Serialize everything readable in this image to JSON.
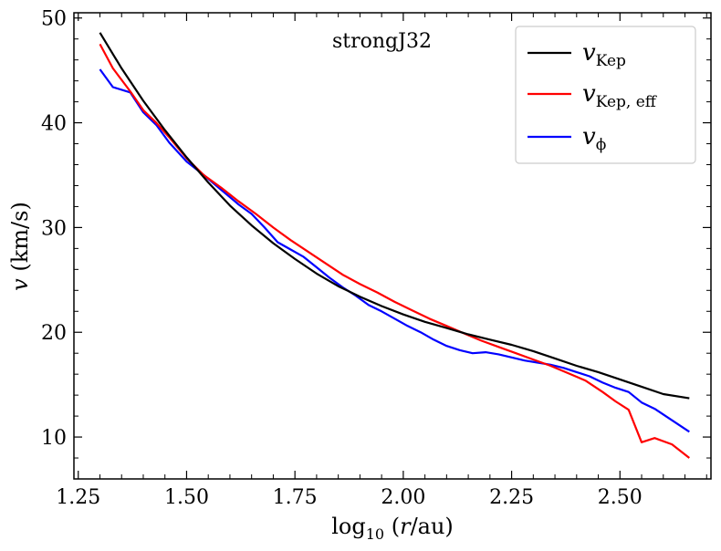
{
  "chart_data": {
    "type": "line",
    "title": "",
    "annotation": "strongJ32",
    "xlabel": {
      "prefix": "log",
      "sub": "10",
      "open": " (",
      "var": "r",
      "rest": "/au)"
    },
    "ylabel": {
      "var": "v",
      "rest": " (km/s)"
    },
    "xlim": [
      1.24,
      2.71
    ],
    "ylim": [
      6.0,
      50.5
    ],
    "xticks": [
      1.25,
      1.5,
      1.75,
      2.0,
      2.25,
      2.5
    ],
    "xtick_labels": [
      "1.25",
      "1.50",
      "1.75",
      "2.00",
      "2.25",
      "2.50"
    ],
    "yticks": [
      10,
      20,
      30,
      40,
      50
    ],
    "ytick_labels": [
      "10",
      "20",
      "30",
      "40",
      "50"
    ],
    "legend_position": "top-right",
    "series": [
      {
        "name": "v_Kep",
        "label_main": "v",
        "label_sub": "Kep",
        "color": "#000000",
        "x": [
          1.3,
          1.35,
          1.4,
          1.45,
          1.5,
          1.55,
          1.6,
          1.65,
          1.7,
          1.75,
          1.8,
          1.85,
          1.9,
          1.95,
          2.0,
          2.05,
          2.1,
          2.15,
          2.2,
          2.25,
          2.3,
          2.35,
          2.4,
          2.45,
          2.5,
          2.55,
          2.6,
          2.66
        ],
        "y": [
          48.6,
          45.2,
          42.1,
          39.3,
          36.7,
          34.3,
          32.1,
          30.2,
          28.5,
          27.0,
          25.6,
          24.4,
          23.4,
          22.5,
          21.7,
          21.0,
          20.4,
          19.8,
          19.3,
          18.8,
          18.2,
          17.5,
          16.8,
          16.2,
          15.5,
          14.8,
          14.1,
          13.7
        ]
      },
      {
        "name": "v_Kep,eff",
        "label_main": "v",
        "label_sub": "Kep, eff",
        "color": "#ff0000",
        "x": [
          1.3,
          1.33,
          1.37,
          1.4,
          1.43,
          1.46,
          1.5,
          1.54,
          1.58,
          1.62,
          1.66,
          1.7,
          1.74,
          1.78,
          1.82,
          1.86,
          1.9,
          1.94,
          1.98,
          2.02,
          2.06,
          2.1,
          2.14,
          2.18,
          2.22,
          2.26,
          2.3,
          2.34,
          2.38,
          2.42,
          2.46,
          2.49,
          2.52,
          2.55,
          2.58,
          2.62,
          2.66
        ],
        "y": [
          47.5,
          45.2,
          43.0,
          41.2,
          40.0,
          38.6,
          36.6,
          35.0,
          33.8,
          32.5,
          31.3,
          30.0,
          28.8,
          27.7,
          26.6,
          25.5,
          24.6,
          23.8,
          22.9,
          22.1,
          21.3,
          20.6,
          19.9,
          19.2,
          18.6,
          18.0,
          17.4,
          16.8,
          16.1,
          15.4,
          14.3,
          13.4,
          12.6,
          9.5,
          9.9,
          9.3,
          8.0
        ]
      },
      {
        "name": "v_phi",
        "label_main": "v",
        "label_sub": "ϕ",
        "color": "#0000ff",
        "x": [
          1.3,
          1.33,
          1.37,
          1.4,
          1.43,
          1.46,
          1.5,
          1.54,
          1.58,
          1.62,
          1.65,
          1.68,
          1.71,
          1.74,
          1.77,
          1.8,
          1.83,
          1.86,
          1.89,
          1.92,
          1.95,
          1.98,
          2.01,
          2.04,
          2.07,
          2.1,
          2.13,
          2.16,
          2.19,
          2.22,
          2.25,
          2.28,
          2.31,
          2.34,
          2.37,
          2.4,
          2.43,
          2.46,
          2.49,
          2.52,
          2.55,
          2.58,
          2.62,
          2.66
        ],
        "y": [
          45.1,
          43.4,
          42.9,
          41.0,
          39.8,
          38.1,
          36.3,
          35.0,
          33.6,
          32.2,
          31.3,
          30.0,
          28.6,
          27.9,
          27.2,
          26.2,
          25.2,
          24.3,
          23.5,
          22.6,
          22.0,
          21.3,
          20.6,
          20.0,
          19.3,
          18.7,
          18.3,
          18.0,
          18.1,
          17.9,
          17.6,
          17.3,
          17.1,
          16.9,
          16.6,
          16.2,
          15.8,
          15.2,
          14.7,
          14.3,
          13.3,
          12.7,
          11.6,
          10.5
        ]
      }
    ]
  }
}
